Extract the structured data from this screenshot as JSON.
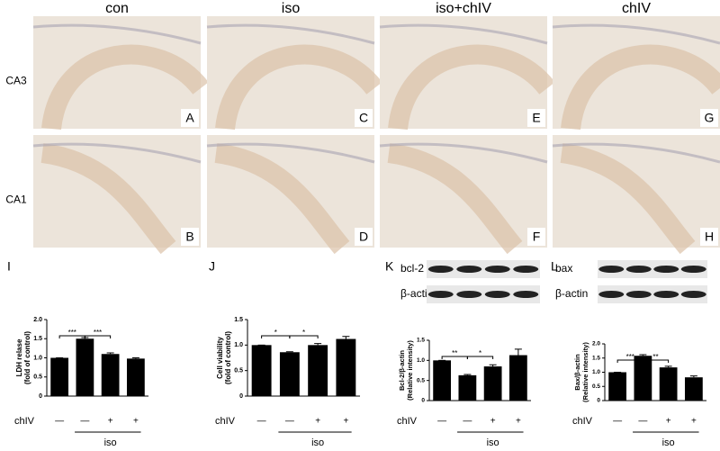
{
  "columns": [
    "con",
    "iso",
    "iso+chIV",
    "chIV"
  ],
  "rows": [
    "CA3",
    "CA1"
  ],
  "panels": [
    [
      "A",
      "C",
      "E",
      "G"
    ],
    [
      "B",
      "D",
      "F",
      "H"
    ]
  ],
  "chart_data": [
    {
      "type": "bar",
      "panel_label": "I",
      "ylabel": [
        "LDH relase",
        "(fold of control)"
      ],
      "categories": [
        "—",
        "—",
        "+",
        "+"
      ],
      "row_label": "chIV",
      "group_label": "iso",
      "values": [
        1.0,
        1.5,
        1.1,
        0.98
      ],
      "errors": [
        0,
        0.03,
        0.03,
        0.02
      ],
      "color": "#000000",
      "ylim": [
        0,
        2
      ],
      "yticks": [
        0,
        0.5,
        {
          "value": 1,
          "label": "1.0"
        },
        1.5,
        {
          "value": 2,
          "label": "2.0"
        }
      ],
      "annotations": [
        "***",
        "***"
      ]
    },
    {
      "type": "bar",
      "panel_label": "J",
      "ylabel": [
        "Cell viability",
        "(fold of control)"
      ],
      "categories": [
        "—",
        "—",
        "+",
        "+"
      ],
      "row_label": "chIV",
      "group_label": "iso",
      "values": [
        1.0,
        0.86,
        1.0,
        1.12
      ],
      "errors": [
        0,
        0.01,
        0.03,
        0.05
      ],
      "color": "#000000",
      "ylim": [
        0,
        1.5
      ],
      "yticks": [
        0,
        0.5,
        {
          "value": 1,
          "label": "1.0"
        },
        1.5
      ],
      "annotations": [
        "*",
        "*"
      ]
    },
    {
      "type": "bar",
      "panel_label": "K",
      "blot_labels": [
        "bcl-2",
        "β-actin"
      ],
      "ylabel": [
        "Bcl-2/β-actin",
        "(Relative intensity)"
      ],
      "categories": [
        "—",
        "—",
        "+",
        "+"
      ],
      "row_label": "chIV",
      "group_label": "iso",
      "values": [
        1.0,
        0.63,
        0.85,
        1.13
      ],
      "errors": [
        0,
        0.02,
        0.04,
        0.15
      ],
      "color": "#000000",
      "ylim": [
        0,
        1.5
      ],
      "yticks": [
        0,
        0.5,
        {
          "value": 1,
          "label": "1.0"
        },
        1.5
      ],
      "annotations": [
        "**",
        "*"
      ]
    },
    {
      "type": "bar",
      "panel_label": "L",
      "blot_labels": [
        "bax",
        "β-actin"
      ],
      "ylabel": [
        "Bax/β-actin",
        "(Relative intensity)"
      ],
      "categories": [
        "—",
        "—",
        "+",
        "+"
      ],
      "row_label": "chIV",
      "group_label": "iso",
      "values": [
        1.0,
        1.58,
        1.17,
        0.82
      ],
      "errors": [
        0,
        0.04,
        0.04,
        0.05
      ],
      "color": "#000000",
      "ylim": [
        0,
        2
      ],
      "yticks": [
        0,
        0.5,
        {
          "value": 1,
          "label": "1.0"
        },
        1.5,
        {
          "value": 2,
          "label": "2.0"
        }
      ],
      "annotations": [
        "***",
        "**"
      ]
    }
  ]
}
